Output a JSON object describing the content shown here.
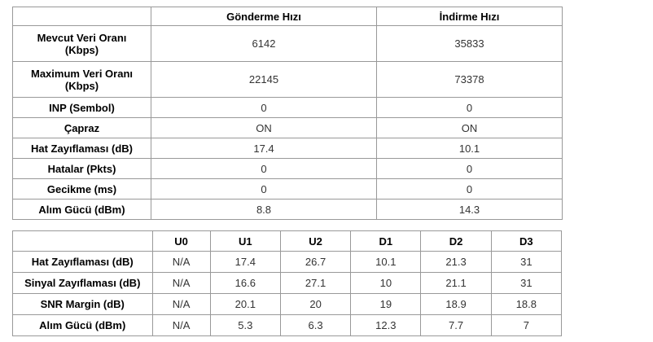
{
  "colors": {
    "border": "#999999",
    "label_text": "#000000",
    "value_text": "#333333",
    "background": "#ffffff"
  },
  "table1": {
    "name": "connection-speed-table",
    "headers": [
      "",
      "Gönderme Hızı",
      "İndirme Hızı"
    ],
    "rows": [
      {
        "label": "Mevcut Veri Oranı\n(Kbps)",
        "values": [
          "6142",
          "35833"
        ]
      },
      {
        "label": "Maximum Veri Oranı\n(Kbps)",
        "values": [
          "22145",
          "73378"
        ]
      },
      {
        "label": "INP (Sembol)",
        "values": [
          "0",
          "0"
        ]
      },
      {
        "label": "Çapraz",
        "values": [
          "ON",
          "ON"
        ]
      },
      {
        "label": "Hat Zayıflaması (dB)",
        "values": [
          "17.4",
          "10.1"
        ]
      },
      {
        "label": "Hatalar (Pkts)",
        "values": [
          "0",
          "0"
        ]
      },
      {
        "label": "Gecikme (ms)",
        "values": [
          "0",
          "0"
        ]
      },
      {
        "label": "Alım Gücü (dBm)",
        "values": [
          "8.8",
          "14.3"
        ]
      }
    ]
  },
  "table2": {
    "name": "band-statistics-table",
    "headers": [
      "",
      "U0",
      "U1",
      "U2",
      "D1",
      "D2",
      "D3"
    ],
    "rows": [
      {
        "label": "Hat Zayıflaması (dB)",
        "values": [
          "N/A",
          "17.4",
          "26.7",
          "10.1",
          "21.3",
          "31"
        ]
      },
      {
        "label": "Sinyal Zayıflaması (dB)",
        "values": [
          "N/A",
          "16.6",
          "27.1",
          "10",
          "21.1",
          "31"
        ]
      },
      {
        "label": "SNR Margin (dB)",
        "values": [
          "N/A",
          "20.1",
          "20",
          "19",
          "18.9",
          "18.8"
        ]
      },
      {
        "label": "Alım Gücü (dBm)",
        "values": [
          "N/A",
          "5.3",
          "6.3",
          "12.3",
          "7.7",
          "7"
        ]
      }
    ]
  }
}
